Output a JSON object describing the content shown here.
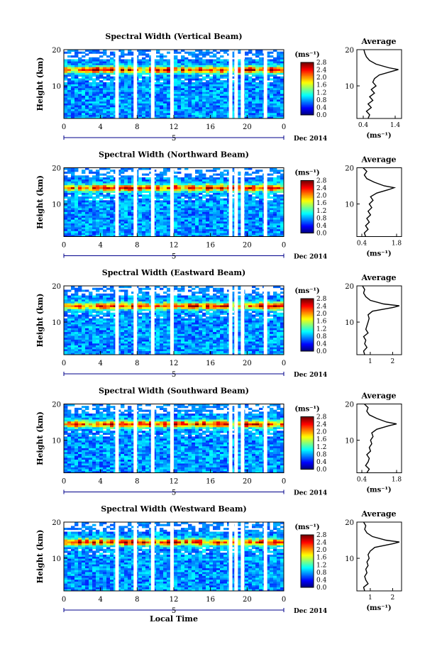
{
  "chart_data": [
    {
      "type": "heatmap",
      "title": "Spectral Width (Vertical Beam)",
      "xlabel": "",
      "ylabel": "Height (km)",
      "x_ticks": [
        "0",
        "4",
        "8",
        "12",
        "16",
        "20",
        "0"
      ],
      "xlim": [
        0,
        24
      ],
      "y_ticks": [
        "10",
        "20"
      ],
      "ylim": [
        1,
        20
      ],
      "day_label": "5",
      "date_label": "Dec 2014",
      "colorbar": {
        "unit": "(ms⁻¹)",
        "ticks": [
          "0.0",
          "0.4",
          "0.8",
          "1.2",
          "1.6",
          "2.0",
          "2.4",
          "2.8"
        ],
        "range": [
          0,
          2.8
        ]
      },
      "band_center_km": 14.5,
      "gaps_local_time": [
        5.8,
        7.8,
        9.7,
        11.8,
        18.2,
        18.8,
        19.5,
        22.0
      ],
      "average": {
        "title": "Average",
        "xlabel": "(ms⁻¹)",
        "x_ticks": [
          "0.4",
          "1.4"
        ],
        "xlim": [
          0.2,
          1.6
        ],
        "y_ticks": [
          "10",
          "20"
        ],
        "ylim": [
          1,
          20
        ],
        "height_km": [
          1,
          2,
          3,
          4,
          5,
          6,
          7,
          8,
          9,
          10,
          11,
          12,
          13,
          14,
          14.5,
          15,
          16,
          17,
          18,
          19,
          20
        ],
        "value": [
          0.55,
          0.6,
          0.5,
          0.65,
          0.55,
          0.7,
          0.6,
          0.75,
          0.65,
          0.8,
          0.7,
          0.75,
          0.9,
          1.3,
          1.5,
          1.2,
          0.8,
          0.6,
          0.5,
          0.45,
          0.42
        ]
      }
    },
    {
      "type": "heatmap",
      "title": "Spectral Width (Northward Beam)",
      "xlabel": "",
      "ylabel": "Height (km)",
      "x_ticks": [
        "0",
        "4",
        "8",
        "12",
        "16",
        "20",
        "0"
      ],
      "xlim": [
        0,
        24
      ],
      "y_ticks": [
        "10",
        "20"
      ],
      "ylim": [
        1,
        20
      ],
      "day_label": "5",
      "date_label": "Dec 2014",
      "colorbar": {
        "unit": "(ms⁻¹)",
        "ticks": [
          "0.0",
          "0.4",
          "0.8",
          "1.2",
          "1.6",
          "2.0",
          "2.4",
          "2.8"
        ],
        "range": [
          0,
          2.8
        ]
      },
      "band_center_km": 14.5,
      "gaps_local_time": [
        5.8,
        7.8,
        9.7,
        11.8,
        18.2,
        18.8,
        19.5,
        22.0
      ],
      "average": {
        "title": "Average",
        "xlabel": "(ms⁻¹)",
        "x_ticks": [
          "0.4",
          "1.8"
        ],
        "xlim": [
          0.2,
          2.0
        ],
        "y_ticks": [
          "10",
          "20"
        ],
        "ylim": [
          1,
          20
        ],
        "height_km": [
          1,
          2,
          3,
          4,
          5,
          6,
          7,
          8,
          9,
          10,
          11,
          12,
          13,
          14,
          14.5,
          15,
          16,
          17,
          18,
          19,
          20
        ],
        "value": [
          0.55,
          0.5,
          0.65,
          0.55,
          0.7,
          0.6,
          0.75,
          0.65,
          0.8,
          0.7,
          0.85,
          0.75,
          1.0,
          1.5,
          1.7,
          1.3,
          0.9,
          0.6,
          0.5,
          0.6,
          0.45
        ]
      }
    },
    {
      "type": "heatmap",
      "title": "Spectral Width (Eastward Beam)",
      "xlabel": "",
      "ylabel": "Height (km)",
      "x_ticks": [
        "0",
        "4",
        "8",
        "12",
        "16",
        "20",
        "0"
      ],
      "xlim": [
        0,
        24
      ],
      "y_ticks": [
        "10",
        "20"
      ],
      "ylim": [
        1,
        20
      ],
      "day_label": "5",
      "date_label": "Dec 2014",
      "colorbar": {
        "unit": "(ms⁻¹)",
        "ticks": [
          "0.0",
          "0.4",
          "0.8",
          "1.2",
          "1.6",
          "2.0",
          "2.4",
          "2.8"
        ],
        "range": [
          0,
          2.8
        ]
      },
      "band_center_km": 14.5,
      "gaps_local_time": [
        5.8,
        7.8,
        9.7,
        11.8,
        18.2,
        18.8,
        19.5,
        22.0
      ],
      "average": {
        "title": "Average",
        "xlabel": "",
        "x_ticks": [
          "1",
          "2"
        ],
        "xlim": [
          0.4,
          2.4
        ],
        "y_ticks": [
          "10",
          "20"
        ],
        "ylim": [
          1,
          20
        ],
        "height_km": [
          1,
          2,
          3,
          4,
          5,
          6,
          7,
          8,
          9,
          10,
          11,
          12,
          13,
          14,
          14.5,
          15,
          16,
          17,
          18,
          19,
          20
        ],
        "value": [
          0.75,
          0.7,
          0.85,
          0.75,
          0.8,
          0.7,
          0.9,
          0.8,
          0.85,
          0.9,
          0.95,
          0.9,
          1.1,
          2.0,
          2.3,
          1.6,
          1.0,
          0.8,
          0.7,
          0.75,
          0.65
        ]
      }
    },
    {
      "type": "heatmap",
      "title": "Spectral Width (Southward Beam)",
      "xlabel": "",
      "ylabel": "Height (km)",
      "x_ticks": [
        "0",
        "4",
        "8",
        "12",
        "16",
        "20",
        "0"
      ],
      "xlim": [
        0,
        24
      ],
      "y_ticks": [
        "10",
        "20"
      ],
      "ylim": [
        1,
        20
      ],
      "day_label": "5",
      "date_label": "Dec 2014",
      "colorbar": {
        "unit": "(ms⁻¹)",
        "ticks": [
          "0.0",
          "0.4",
          "0.8",
          "1.2",
          "1.6",
          "2.0",
          "2.4",
          "2.8"
        ],
        "range": [
          0,
          2.8
        ]
      },
      "band_center_km": 14.5,
      "gaps_local_time": [
        5.8,
        7.8,
        9.7,
        11.8,
        18.2,
        18.8,
        19.5,
        22.0
      ],
      "average": {
        "title": "Average",
        "xlabel": "(ms⁻¹)",
        "x_ticks": [
          "0.4",
          "1.8"
        ],
        "xlim": [
          0.2,
          2.0
        ],
        "y_ticks": [
          "10",
          "20"
        ],
        "ylim": [
          1,
          20
        ],
        "height_km": [
          1,
          2,
          3,
          4,
          5,
          6,
          7,
          8,
          9,
          10,
          11,
          12,
          13,
          14,
          14.5,
          15,
          16,
          17,
          18,
          19,
          20
        ],
        "value": [
          0.6,
          0.7,
          0.55,
          0.65,
          0.7,
          0.6,
          0.75,
          0.7,
          0.8,
          0.75,
          0.85,
          0.8,
          1.0,
          1.5,
          1.8,
          1.4,
          1.0,
          0.7,
          0.6,
          0.65,
          0.5
        ]
      }
    },
    {
      "type": "heatmap",
      "title": "Spectral Width (Westward Beam)",
      "xlabel": "Local Time",
      "ylabel": "Height (km)",
      "x_ticks": [
        "0",
        "4",
        "8",
        "12",
        "16",
        "20",
        "0"
      ],
      "xlim": [
        0,
        24
      ],
      "y_ticks": [
        "10",
        "20"
      ],
      "ylim": [
        1,
        20
      ],
      "day_label": "5",
      "date_label": "Dec 2014",
      "colorbar": {
        "unit": "(ms⁻¹)",
        "ticks": [
          "0.0",
          "0.4",
          "0.8",
          "1.2",
          "1.6",
          "2.0",
          "2.4",
          "2.8"
        ],
        "range": [
          0,
          2.8
        ]
      },
      "band_center_km": 14.5,
      "gaps_local_time": [
        5.8,
        7.8,
        9.7,
        11.8,
        18.2,
        18.8,
        19.5,
        22.0
      ],
      "average": {
        "title": "Average",
        "xlabel": "(ms⁻¹)",
        "x_ticks": [
          "1",
          "2"
        ],
        "xlim": [
          0.4,
          2.4
        ],
        "y_ticks": [
          "10",
          "20"
        ],
        "ylim": [
          1,
          20
        ],
        "height_km": [
          1,
          2,
          3,
          4,
          5,
          6,
          7,
          8,
          9,
          10,
          11,
          12,
          13,
          14,
          14.5,
          15,
          16,
          17,
          18,
          19,
          20
        ],
        "value": [
          0.75,
          0.7,
          0.9,
          0.8,
          0.75,
          0.85,
          0.8,
          0.9,
          0.85,
          0.95,
          0.9,
          1.0,
          1.2,
          2.0,
          2.3,
          1.7,
          1.1,
          0.85,
          0.75,
          0.8,
          0.7
        ]
      }
    }
  ]
}
